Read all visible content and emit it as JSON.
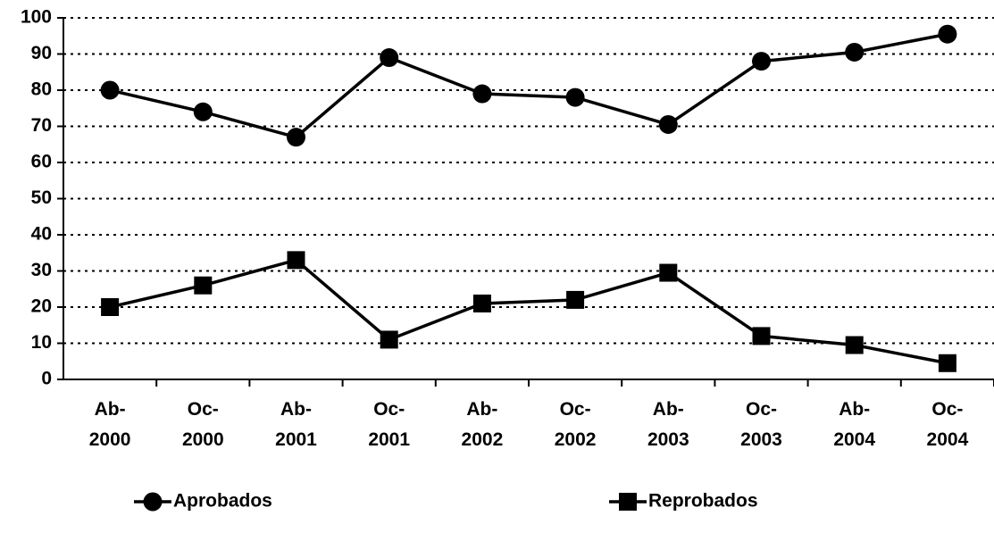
{
  "chart_data": {
    "type": "line",
    "categories": [
      "Ab-\n2000",
      "Oc-\n2000",
      "Ab-\n2001",
      "Oc-\n2001",
      "Ab-\n2002",
      "Oc-\n2002",
      "Ab-\n2003",
      "Oc-\n2003",
      "Ab-\n2004",
      "Oc-\n2004"
    ],
    "series": [
      {
        "name": "Aprobados",
        "color": "#000000",
        "marker": "circle",
        "values": [
          80,
          74,
          67,
          89,
          79,
          78,
          70.5,
          88,
          90.5,
          95.5
        ]
      },
      {
        "name": "Reprobados",
        "color": "#000000",
        "marker": "square",
        "values": [
          20,
          26,
          33,
          11,
          21,
          22,
          29.5,
          12,
          9.5,
          4.5
        ]
      }
    ],
    "ylim": [
      0,
      100
    ],
    "yticks": [
      0,
      10,
      20,
      30,
      40,
      50,
      60,
      70,
      80,
      90,
      100
    ],
    "grid": true,
    "legend": "bottom"
  }
}
